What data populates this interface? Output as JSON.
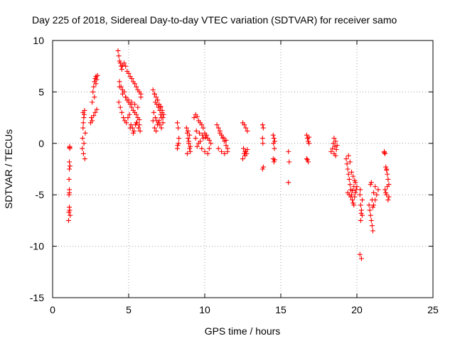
{
  "chart_data": {
    "type": "scatter",
    "title": "Day 225 of 2018, Sidereal Day-to-day VTEC variation (SDTVAR) for receiver samo",
    "xlabel": "GPS time / hours",
    "ylabel": "SDTVAR / TECUs",
    "xlim": [
      0,
      25
    ],
    "ylim": [
      -15,
      10
    ],
    "xticks": [
      0,
      5,
      10,
      15,
      20,
      25
    ],
    "yticks": [
      -15,
      -10,
      -5,
      0,
      5,
      10
    ],
    "xtick_labels": [
      "0",
      "5",
      "10",
      "15",
      "20",
      "25"
    ],
    "ytick_labels": [
      "-15",
      "-10",
      "-5",
      "0",
      "5",
      "10"
    ],
    "grid": true,
    "marker": "+",
    "color": "#ff0000",
    "series": [
      {
        "name": "SDTVAR",
        "x": [
          1.05,
          1.07,
          1.08,
          1.1,
          1.1,
          1.1,
          1.12,
          1.13,
          1.12,
          1.15,
          1.1,
          1.14,
          1.08,
          1.1,
          1.12,
          1.95,
          1.97,
          2.0,
          2.02,
          2.05,
          2.0,
          2.1,
          2.03,
          2.06,
          2.15,
          2.08,
          2.12,
          2.5,
          2.55,
          2.6,
          2.65,
          2.7,
          2.75,
          2.8,
          2.85,
          2.9,
          2.95,
          2.6,
          2.7,
          2.8,
          2.9,
          2.75,
          2.85,
          4.3,
          4.35,
          4.4,
          4.45,
          4.5,
          4.55,
          4.6,
          4.7,
          4.8,
          4.9,
          5.0,
          5.1,
          5.2,
          5.3,
          5.4,
          5.5,
          5.6,
          5.7,
          5.8,
          4.4,
          4.5,
          4.6,
          4.7,
          4.8,
          4.9,
          5.0,
          5.1,
          5.2,
          5.3,
          5.4,
          5.5,
          5.6,
          5.7,
          4.35,
          4.45,
          4.55,
          4.65,
          4.75,
          4.85,
          4.95,
          5.05,
          5.15,
          5.25,
          5.35,
          5.45,
          5.55,
          5.65,
          5.75,
          4.4,
          4.6,
          4.8,
          5.0,
          5.2,
          5.4,
          5.6,
          5.8,
          5.1,
          5.3,
          5.5,
          5.7,
          6.6,
          6.7,
          6.8,
          6.9,
          7.0,
          7.1,
          7.2,
          7.3,
          6.65,
          6.75,
          6.85,
          6.95,
          7.05,
          7.15,
          7.25,
          6.7,
          6.8,
          6.9,
          7.0,
          7.1,
          7.2,
          6.75,
          6.95,
          7.15,
          6.6,
          6.85,
          7.05,
          7.25,
          6.7,
          6.9,
          7.1,
          8.2,
          8.25,
          8.3,
          8.2,
          8.28,
          8.22,
          8.8,
          8.85,
          8.9,
          8.95,
          9.0,
          9.05,
          8.9,
          9.0,
          8.85,
          8.95,
          9.05,
          9.3,
          9.4,
          9.5,
          9.6,
          9.7,
          9.8,
          9.9,
          10.0,
          10.1,
          10.2,
          10.3,
          10.4,
          9.4,
          9.6,
          9.8,
          10.0,
          10.2,
          9.5,
          9.7,
          9.9,
          10.1,
          10.3,
          9.45,
          9.65,
          9.85,
          10.05,
          10.8,
          10.9,
          11.0,
          11.1,
          11.2,
          11.3,
          11.4,
          11.5,
          10.9,
          11.1,
          11.3,
          11.5,
          11.0,
          11.2,
          11.4,
          12.5,
          12.6,
          12.7,
          12.8,
          12.55,
          12.65,
          12.75,
          12.5,
          12.6,
          12.7,
          12.8,
          12.65,
          13.8,
          13.85,
          13.8,
          13.82,
          13.85,
          13.8,
          14.5,
          14.55,
          14.6,
          14.5,
          14.55,
          14.6,
          14.52,
          14.58,
          15.5,
          15.55,
          15.5,
          16.7,
          16.75,
          16.8,
          16.85,
          16.7,
          16.8,
          16.75,
          16.85,
          18.3,
          18.4,
          18.5,
          18.6,
          18.7,
          18.5,
          18.6,
          18.45,
          18.55,
          18.65,
          19.3,
          19.35,
          19.4,
          19.45,
          19.5,
          19.55,
          19.6,
          19.65,
          19.7,
          19.75,
          19.8,
          19.85,
          19.9,
          19.95,
          20.0,
          19.4,
          19.5,
          19.6,
          19.7,
          19.8,
          19.9,
          19.45,
          19.55,
          19.65,
          19.75,
          19.85,
          20.2,
          20.25,
          20.3,
          20.35,
          20.2,
          20.3,
          20.25,
          20.35,
          20.28,
          20.22,
          20.8,
          20.85,
          20.9,
          20.95,
          21.0,
          21.05,
          21.1,
          21.2,
          21.3,
          21.4,
          20.9,
          21.0,
          21.1,
          21.2,
          20.95,
          21.05,
          21.8,
          21.85,
          21.9,
          21.95,
          22.0,
          22.05,
          22.1,
          21.85,
          21.95,
          22.05,
          21.9,
          22.0,
          22.1,
          21.8,
          21.95
        ],
        "y": [
          -7.5,
          -6.7,
          -5.0,
          -4.5,
          -2.5,
          -1.8,
          -0.4,
          -0.5,
          -6.5,
          -7.0,
          -4.8,
          -2.2,
          -3.5,
          -6.2,
          -0.3,
          -0.5,
          0.5,
          1.5,
          2.0,
          2.5,
          3.0,
          3.2,
          -1.0,
          0.0,
          1.0,
          2.8,
          -1.5,
          2.0,
          2.5,
          4.0,
          5.0,
          5.5,
          6.0,
          6.3,
          6.5,
          6.2,
          6.6,
          2.2,
          2.7,
          3.0,
          3.3,
          4.5,
          5.8,
          9.0,
          8.5,
          8.0,
          7.8,
          7.5,
          7.2,
          7.6,
          7.8,
          7.5,
          7.0,
          6.8,
          6.5,
          6.3,
          6.0,
          5.8,
          5.5,
          5.2,
          5.0,
          4.8,
          6.0,
          5.5,
          5.2,
          5.0,
          4.5,
          4.2,
          4.0,
          3.8,
          3.5,
          3.2,
          3.0,
          2.8,
          2.5,
          2.3,
          4.0,
          3.5,
          3.0,
          2.5,
          2.2,
          2.0,
          2.5,
          2.8,
          1.8,
          1.5,
          1.2,
          1.8,
          2.0,
          1.5,
          1.2,
          5.5,
          4.8,
          4.5,
          4.2,
          4.0,
          3.8,
          3.5,
          4.5,
          1.5,
          1.0,
          2.0,
          1.8,
          5.2,
          4.8,
          4.5,
          4.2,
          3.8,
          3.5,
          3.2,
          2.8,
          3.0,
          2.5,
          2.2,
          2.0,
          1.8,
          1.5,
          2.5,
          1.5,
          1.2,
          1.8,
          2.2,
          2.8,
          3.0,
          4.0,
          3.5,
          2.5,
          2.2,
          3.8,
          3.2,
          2.0,
          4.8,
          4.2,
          3.6,
          2.0,
          1.5,
          0.5,
          -0.5,
          0.0,
          -0.2,
          1.5,
          1.0,
          0.5,
          0.0,
          -0.5,
          -0.3,
          1.2,
          0.8,
          -1.0,
          0.2,
          -0.8,
          2.5,
          2.8,
          2.6,
          2.2,
          2.0,
          1.8,
          1.5,
          1.0,
          0.8,
          0.5,
          0.3,
          0.0,
          0.5,
          0.0,
          -0.5,
          -0.8,
          -1.0,
          -0.3,
          0.2,
          0.5,
          0.8,
          -0.5,
          1.2,
          1.0,
          0.8,
          0.6,
          1.8,
          1.5,
          1.2,
          0.8,
          0.5,
          0.2,
          -0.2,
          -0.5,
          -0.5,
          -0.8,
          -1.0,
          -0.8,
          1.0,
          0.6,
          0.3,
          2.0,
          1.8,
          1.5,
          1.2,
          -0.5,
          -0.8,
          -1.0,
          -1.5,
          -1.0,
          -0.8,
          -0.6,
          -1.2,
          1.8,
          1.5,
          0.5,
          0.0,
          -2.3,
          -2.5,
          0.8,
          0.5,
          0.2,
          -1.5,
          -1.8,
          -1.6,
          0.0,
          -0.5,
          -0.8,
          -1.8,
          -3.8,
          0.8,
          0.5,
          0.2,
          0.0,
          -1.5,
          -1.8,
          -1.6,
          0.6,
          -0.8,
          -0.5,
          0.5,
          0.2,
          -0.2,
          -1.0,
          -1.2,
          0.0,
          -0.3,
          -0.6,
          -1.5,
          -2.0,
          -2.5,
          -3.0,
          -3.5,
          -4.0,
          -4.5,
          -5.0,
          -5.5,
          -5.8,
          -6.0,
          -5.2,
          -4.8,
          -4.5,
          -4.2,
          -4.8,
          -5.0,
          -5.2,
          -4.6,
          -4.2,
          -3.8,
          -1.2,
          -1.8,
          -2.8,
          -3.2,
          -3.6,
          -5.0,
          -6.0,
          -6.5,
          -7.0,
          -10.8,
          -11.2,
          -7.5,
          -5.5,
          -6.8,
          -4.5,
          -6.0,
          -6.5,
          -7.0,
          -7.5,
          -8.0,
          -8.5,
          -6.0,
          -5.5,
          -5.0,
          -4.5,
          -4.0,
          -5.5,
          -4.8,
          -4.2,
          -3.8,
          -6.2,
          -0.8,
          -1.0,
          -2.3,
          -2.5,
          -3.0,
          -3.5,
          -4.0,
          -4.5,
          -5.0,
          -5.5,
          -4.8,
          -4.2,
          -5.2,
          -0.9,
          -2.6
        ]
      }
    ]
  }
}
